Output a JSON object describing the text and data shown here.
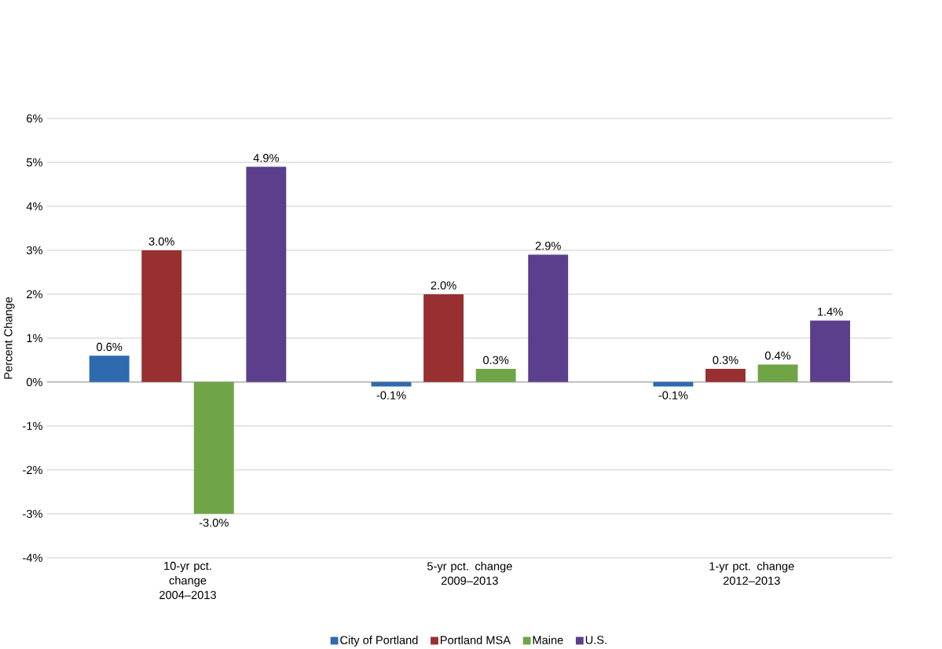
{
  "chart_data": {
    "type": "bar",
    "ylabel": "Percent Change",
    "categories": [
      "10-yr pct. change 2004–2013",
      "5-yr pct. change 2009–2013",
      "1-yr pct. change 2012–2013"
    ],
    "series": [
      {
        "name": "City of Portland",
        "color": "#2e6aad",
        "values": [
          0.6,
          -0.1,
          -0.1
        ],
        "value_labels": [
          "0.6%",
          "-0.1%",
          "-0.1%"
        ]
      },
      {
        "name": "Portland MSA",
        "color": "#982f30",
        "values": [
          3.0,
          2.0,
          0.3
        ],
        "value_labels": [
          "3.0%",
          "2.0%",
          "0.3%"
        ]
      },
      {
        "name": "Maine",
        "color": "#6fa547",
        "values": [
          -3.0,
          0.3,
          0.4
        ],
        "value_labels": [
          "-3.0%",
          "0.3%",
          "0.4%"
        ]
      },
      {
        "name": "U.S.",
        "color": "#5b3f8c",
        "values": [
          4.9,
          2.9,
          1.4
        ],
        "value_labels": [
          "4.9%",
          "2.9%",
          "1.4%"
        ]
      }
    ],
    "ylim": [
      -4,
      6
    ],
    "yticks": [
      {
        "value": -4,
        "label": "-4%"
      },
      {
        "value": -3,
        "label": "-3%"
      },
      {
        "value": -2,
        "label": "-2%"
      },
      {
        "value": -1,
        "label": "-1%"
      },
      {
        "value": 0,
        "label": "0%"
      },
      {
        "value": 1,
        "label": "1%"
      },
      {
        "value": 2,
        "label": "2%"
      },
      {
        "value": 3,
        "label": "3%"
      },
      {
        "value": 4,
        "label": "4%"
      },
      {
        "value": 5,
        "label": "5%"
      },
      {
        "value": 6,
        "label": "6%"
      }
    ],
    "grid": "y",
    "legend": "bottom"
  }
}
